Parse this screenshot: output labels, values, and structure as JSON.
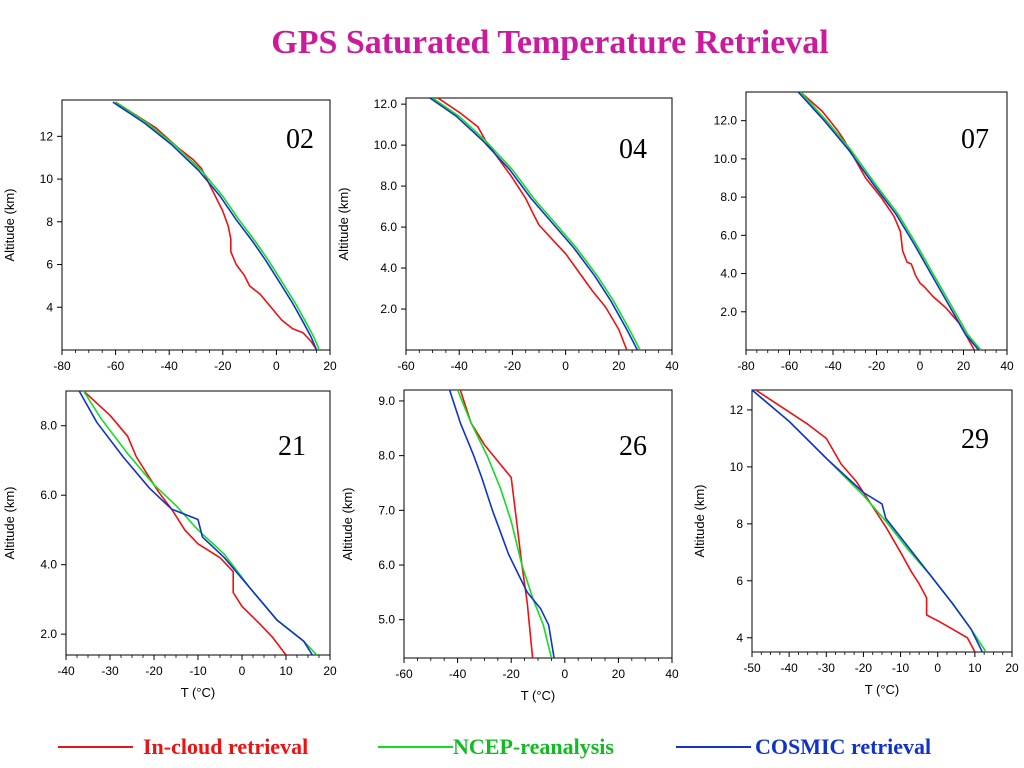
{
  "title": "GPS Saturated Temperature Retrieval",
  "legend": [
    {
      "label": "In-cloud retrieval",
      "color": "#ee1111"
    },
    {
      "label": "NCEP-reanalysis",
      "color": "#11dd22"
    },
    {
      "label": "COSMIC retrieval",
      "color": "#1133cc"
    }
  ],
  "chart_data": [
    {
      "type": "line",
      "panel": "02",
      "xlabel": "",
      "ylabel": "Altitude (km)",
      "xlim": [
        -80,
        20
      ],
      "ylim": [
        2,
        13.7
      ],
      "xticks": [
        -80,
        -60,
        -40,
        -20,
        0,
        20
      ],
      "xticklabels": [
        "-80",
        "-60",
        "-40",
        "-20",
        "0",
        "20"
      ],
      "yticks": [
        4,
        6,
        8,
        10,
        12
      ],
      "yticklabels": [
        "4",
        "6",
        "8",
        "10",
        "12"
      ],
      "series": [
        {
          "name": "In-cloud retrieval",
          "x": [
            -60,
            -45,
            -37,
            -31,
            -28,
            -24,
            -20,
            -18,
            -17,
            -17,
            -15,
            -12,
            -10,
            -6,
            -2,
            2,
            6,
            10,
            13,
            15
          ],
          "y": [
            13.6,
            12.4,
            11.5,
            10.9,
            10.5,
            9.5,
            8.5,
            7.8,
            7.2,
            6.6,
            6,
            5.5,
            5,
            4.6,
            4,
            3.4,
            3,
            2.8,
            2.4,
            2
          ]
        },
        {
          "name": "NCEP-reanalysis",
          "x": [
            -60,
            -48,
            -38,
            -28,
            -20,
            -14,
            -8,
            -3,
            2,
            7,
            11,
            14,
            16
          ],
          "y": [
            13.6,
            12.6,
            11.6,
            10.4,
            9.2,
            8.1,
            7.1,
            6.2,
            5.2,
            4.2,
            3.3,
            2.6,
            2
          ]
        },
        {
          "name": "COSMIC retrieval",
          "x": [
            -61,
            -49,
            -39,
            -29,
            -21,
            -15,
            -9,
            -4,
            1,
            6,
            10,
            13,
            15
          ],
          "y": [
            13.6,
            12.6,
            11.6,
            10.4,
            9.2,
            8.1,
            7.1,
            6.2,
            5.2,
            4.2,
            3.3,
            2.6,
            2
          ]
        }
      ]
    },
    {
      "type": "line",
      "panel": "04",
      "xlabel": "",
      "ylabel": "Altitude (km)",
      "xlim": [
        -60,
        40
      ],
      "ylim": [
        0,
        12.3
      ],
      "xticks": [
        -60,
        -40,
        -20,
        0,
        20,
        40
      ],
      "xticklabels": [
        "-60",
        "-40",
        "-20",
        "0",
        "20",
        "40"
      ],
      "yticks": [
        2,
        4,
        6,
        8,
        10,
        12
      ],
      "yticklabels": [
        "2.0",
        "4.0",
        "6.0",
        "8.0",
        "10.0",
        "12.0"
      ],
      "series": [
        {
          "name": "In-cloud retrieval",
          "x": [
            -48,
            -40,
            -33,
            -30,
            -25,
            -20,
            -15,
            -12,
            -10,
            -5,
            0,
            5,
            10,
            15,
            20,
            23
          ],
          "y": [
            12.3,
            11.6,
            10.9,
            10.2,
            9.3,
            8.4,
            7.4,
            6.6,
            6.1,
            5.4,
            4.7,
            3.8,
            2.9,
            2.1,
            1,
            0
          ]
        },
        {
          "name": "NCEP-reanalysis",
          "x": [
            -50,
            -40,
            -30,
            -20,
            -12,
            -4,
            4,
            12,
            18,
            24,
            28
          ],
          "y": [
            12.3,
            11.4,
            10.2,
            8.8,
            7.4,
            6.2,
            5,
            3.6,
            2.4,
            1,
            0
          ]
        },
        {
          "name": "COSMIC retrieval",
          "x": [
            -51,
            -41,
            -31,
            -21,
            -13,
            -5,
            3,
            11,
            17,
            23,
            27
          ],
          "y": [
            12.3,
            11.4,
            10.2,
            8.8,
            7.4,
            6.2,
            5,
            3.6,
            2.4,
            1,
            0
          ]
        }
      ]
    },
    {
      "type": "line",
      "panel": "07",
      "xlabel": "",
      "ylabel": "",
      "xlim": [
        -80,
        40
      ],
      "ylim": [
        0,
        13.5
      ],
      "xticks": [
        -80,
        -60,
        -40,
        -20,
        0,
        20,
        40
      ],
      "xticklabels": [
        "-80",
        "-60",
        "-40",
        "-20",
        "0",
        "20",
        "40"
      ],
      "yticks": [
        2,
        4,
        6,
        8,
        10,
        12
      ],
      "yticklabels": [
        "2.0",
        "4.0",
        "6.0",
        "8.0",
        "10.0",
        "12.0"
      ],
      "series": [
        {
          "name": "In-cloud retrieval",
          "x": [
            -55,
            -45,
            -38,
            -35,
            -30,
            -25,
            -18,
            -12,
            -9,
            -8,
            -6,
            -4,
            -2,
            0,
            2,
            6,
            12,
            18,
            22,
            25
          ],
          "y": [
            13.5,
            12.5,
            11.5,
            11,
            10,
            9,
            8,
            7,
            6.2,
            5.2,
            4.6,
            4.5,
            3.9,
            3.5,
            3.3,
            2.8,
            2.2,
            1.4,
            0.6,
            0
          ]
        },
        {
          "name": "NCEP-reanalysis",
          "x": [
            -55,
            -43,
            -32,
            -20,
            -10,
            -2,
            6,
            14,
            22,
            28
          ],
          "y": [
            13.5,
            12,
            10.5,
            8.6,
            7.1,
            5.6,
            4,
            2.4,
            0.8,
            0
          ]
        },
        {
          "name": "COSMIC retrieval",
          "x": [
            -56,
            -44,
            -33,
            -21,
            -11,
            -3,
            5,
            13,
            21,
            27
          ],
          "y": [
            13.5,
            12,
            10.5,
            8.6,
            7.1,
            5.6,
            4,
            2.4,
            0.8,
            0
          ]
        }
      ]
    },
    {
      "type": "line",
      "panel": "21",
      "xlabel": "T (°C)",
      "ylabel": "Altitude (km)",
      "xlim": [
        -40,
        20
      ],
      "ylim": [
        1.4,
        9
      ],
      "xticks": [
        -40,
        -30,
        -20,
        -10,
        0,
        10,
        20
      ],
      "xticklabels": [
        "-40",
        "-30",
        "-20",
        "-10",
        "0",
        "10",
        "20"
      ],
      "yticks": [
        2,
        4,
        6,
        8
      ],
      "yticklabels": [
        "2.0",
        "4.0",
        "6.0",
        "8.0"
      ],
      "series": [
        {
          "name": "In-cloud retrieval",
          "x": [
            -36,
            -30,
            -26,
            -24,
            -21,
            -19,
            -16,
            -13,
            -10,
            -5,
            -2,
            -2,
            0,
            4,
            7,
            10
          ],
          "y": [
            9,
            8.3,
            7.7,
            7.1,
            6.5,
            6.1,
            5.6,
            5,
            4.6,
            4.2,
            3.8,
            3.2,
            2.8,
            2.3,
            1.9,
            1.4
          ]
        },
        {
          "name": "NCEP-reanalysis",
          "x": [
            -36,
            -32,
            -26,
            -20,
            -15,
            -10,
            -4,
            2,
            8,
            14,
            17
          ],
          "y": [
            9,
            8.2,
            7.2,
            6.3,
            5.7,
            5,
            4.3,
            3.3,
            2.4,
            1.8,
            1.4
          ]
        },
        {
          "name": "COSMIC retrieval",
          "x": [
            -37,
            -33,
            -27,
            -21,
            -16,
            -10,
            -9,
            -4,
            2,
            8,
            14,
            16
          ],
          "y": [
            9,
            8.1,
            7.1,
            6.2,
            5.6,
            5.3,
            4.8,
            4.2,
            3.3,
            2.4,
            1.8,
            1.4
          ]
        }
      ]
    },
    {
      "type": "line",
      "panel": "26",
      "xlabel": "T (°C)",
      "ylabel": "Altitude (km)",
      "xlim": [
        -60,
        40
      ],
      "ylim": [
        4.3,
        9.2
      ],
      "xticks": [
        -60,
        -40,
        -20,
        0,
        20,
        40
      ],
      "xticklabels": [
        "-60",
        "-40",
        "-20",
        "0",
        "20",
        "40"
      ],
      "yticks": [
        5,
        6,
        7,
        8,
        9
      ],
      "yticklabels": [
        "5.0",
        "6.0",
        "7.0",
        "8.0",
        "9.0"
      ],
      "series": [
        {
          "name": "In-cloud retrieval",
          "x": [
            -39,
            -35,
            -30,
            -25,
            -20,
            -18,
            -16,
            -14,
            -12
          ],
          "y": [
            9.2,
            8.6,
            8.2,
            7.9,
            7.6,
            6.8,
            6,
            5.3,
            4.3
          ]
        },
        {
          "name": "NCEP-reanalysis",
          "x": [
            -40,
            -35,
            -29,
            -24,
            -20,
            -16,
            -12,
            -8,
            -5
          ],
          "y": [
            9.2,
            8.6,
            8,
            7.4,
            6.8,
            6,
            5.4,
            4.9,
            4.3
          ]
        },
        {
          "name": "COSMIC retrieval",
          "x": [
            -43,
            -39,
            -34,
            -31,
            -27,
            -24,
            -21,
            -17,
            -14,
            -9,
            -6,
            -4
          ],
          "y": [
            9.2,
            8.6,
            8,
            7.6,
            7,
            6.6,
            6.2,
            5.8,
            5.5,
            5.2,
            4.9,
            4.3
          ]
        }
      ]
    },
    {
      "type": "line",
      "panel": "29",
      "xlabel": "T (°C)",
      "ylabel": "Altitude (km)",
      "xlim": [
        -50,
        20
      ],
      "ylim": [
        3.5,
        12.7
      ],
      "xticks": [
        -50,
        -40,
        -30,
        -20,
        -10,
        0,
        10,
        20
      ],
      "xticklabels": [
        "-50",
        "-40",
        "-30",
        "-20",
        "-10",
        "0",
        "10",
        "20"
      ],
      "yticks": [
        4,
        6,
        8,
        10,
        12
      ],
      "yticklabels": [
        "4",
        "6",
        "8",
        "10",
        "12"
      ],
      "series": [
        {
          "name": "In-cloud retrieval",
          "x": [
            -49,
            -42,
            -35,
            -30,
            -26,
            -22,
            -18,
            -14,
            -10,
            -7,
            -5,
            -3,
            -3,
            0,
            4,
            8,
            10
          ],
          "y": [
            12.7,
            12.1,
            11.5,
            11,
            10.1,
            9.5,
            8.7,
            7.9,
            7,
            6.3,
            5.9,
            5.4,
            4.8,
            4.6,
            4.3,
            4,
            3.5
          ]
        },
        {
          "name": "NCEP-reanalysis",
          "x": [
            -50,
            -40,
            -30,
            -20,
            -14,
            -8,
            -2,
            4,
            9,
            13
          ],
          "y": [
            12.7,
            11.6,
            10.3,
            9,
            8.1,
            7.1,
            6.2,
            5.2,
            4.3,
            3.5
          ]
        },
        {
          "name": "COSMIC retrieval",
          "x": [
            -50,
            -40,
            -30,
            -20,
            -15,
            -14,
            -8,
            -2,
            4,
            9,
            12
          ],
          "y": [
            12.7,
            11.6,
            10.3,
            9.1,
            8.7,
            8.2,
            7.2,
            6.2,
            5.2,
            4.3,
            3.5
          ]
        }
      ]
    }
  ]
}
